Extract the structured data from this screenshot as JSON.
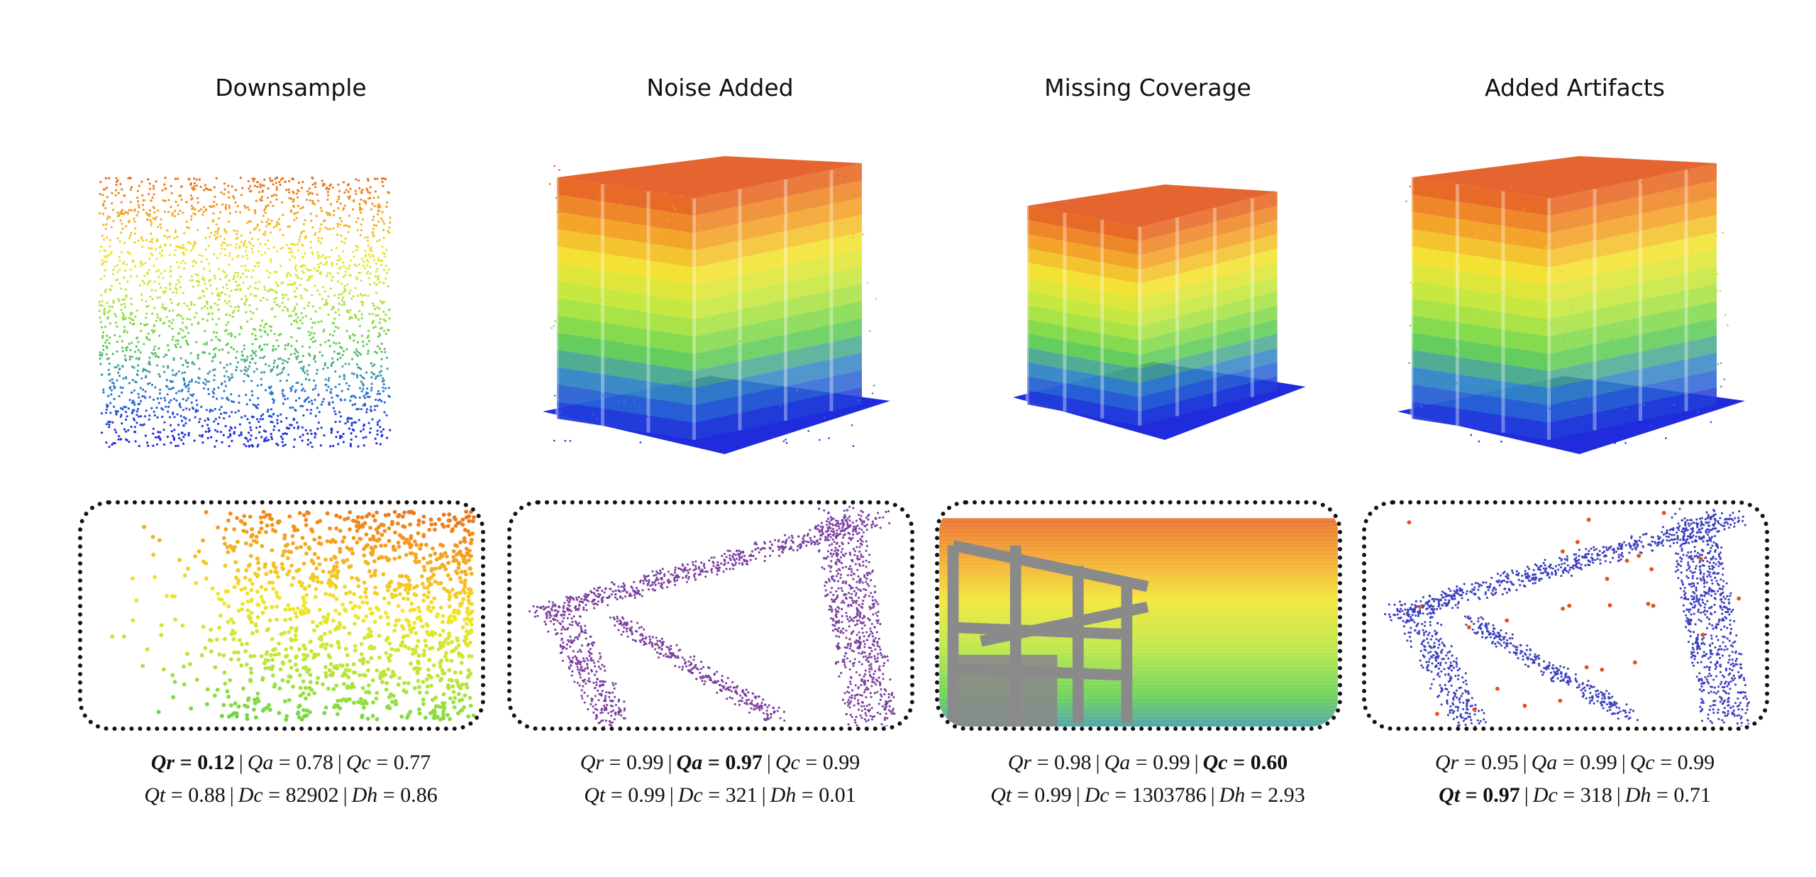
{
  "panels": [
    {
      "title": "Downsample",
      "mode": "sparse",
      "metrics": [
        [
          {
            "sym": "Qr",
            "val": "0.12",
            "bold": true
          },
          {
            "sym": "Qa",
            "val": "0.78"
          },
          {
            "sym": "Qc",
            "val": "0.77"
          }
        ],
        [
          {
            "sym": "Qt",
            "val": "0.88"
          },
          {
            "sym": "Dc",
            "val": "82902"
          },
          {
            "sym": "Dh",
            "val": "0.86"
          }
        ]
      ]
    },
    {
      "title": "Noise Added",
      "mode": "noise",
      "metrics": [
        [
          {
            "sym": "Qr",
            "val": "0.99"
          },
          {
            "sym": "Qa",
            "val": "0.97",
            "bold": true
          },
          {
            "sym": "Qc",
            "val": "0.99"
          }
        ],
        [
          {
            "sym": "Qt",
            "val": "0.99"
          },
          {
            "sym": "Dc",
            "val": "321"
          },
          {
            "sym": "Dh",
            "val": "0.01"
          }
        ]
      ]
    },
    {
      "title": "Missing Coverage",
      "mode": "missing",
      "metrics": [
        [
          {
            "sym": "Qr",
            "val": "0.98"
          },
          {
            "sym": "Qa",
            "val": "0.99"
          },
          {
            "sym": "Qc",
            "val": "0.60",
            "bold": true
          }
        ],
        [
          {
            "sym": "Qt",
            "val": "0.99"
          },
          {
            "sym": "Dc",
            "val": "1303786"
          },
          {
            "sym": "Dh",
            "val": "2.93"
          }
        ]
      ]
    },
    {
      "title": "Added Artifacts",
      "mode": "artifacts",
      "metrics": [
        [
          {
            "sym": "Qr",
            "val": "0.95"
          },
          {
            "sym": "Qa",
            "val": "0.99"
          },
          {
            "sym": "Qc",
            "val": "0.99"
          }
        ],
        [
          {
            "sym": "Qt",
            "val": "0.97",
            "bold": true
          },
          {
            "sym": "Dc",
            "val": "318"
          },
          {
            "sym": "Dh",
            "val": "0.71"
          }
        ]
      ]
    }
  ],
  "colors": {
    "gradient": [
      "#1f2bdc",
      "#2f7fd0",
      "#5fd04a",
      "#b8e63a",
      "#f2e52a",
      "#f39a1f",
      "#e2541a"
    ],
    "noise_dots": "#7a3fa0",
    "artifact_dots": "#3b3fbf",
    "outlier_dots": "#e0541a",
    "missing_gray": "#8a8a8a"
  }
}
